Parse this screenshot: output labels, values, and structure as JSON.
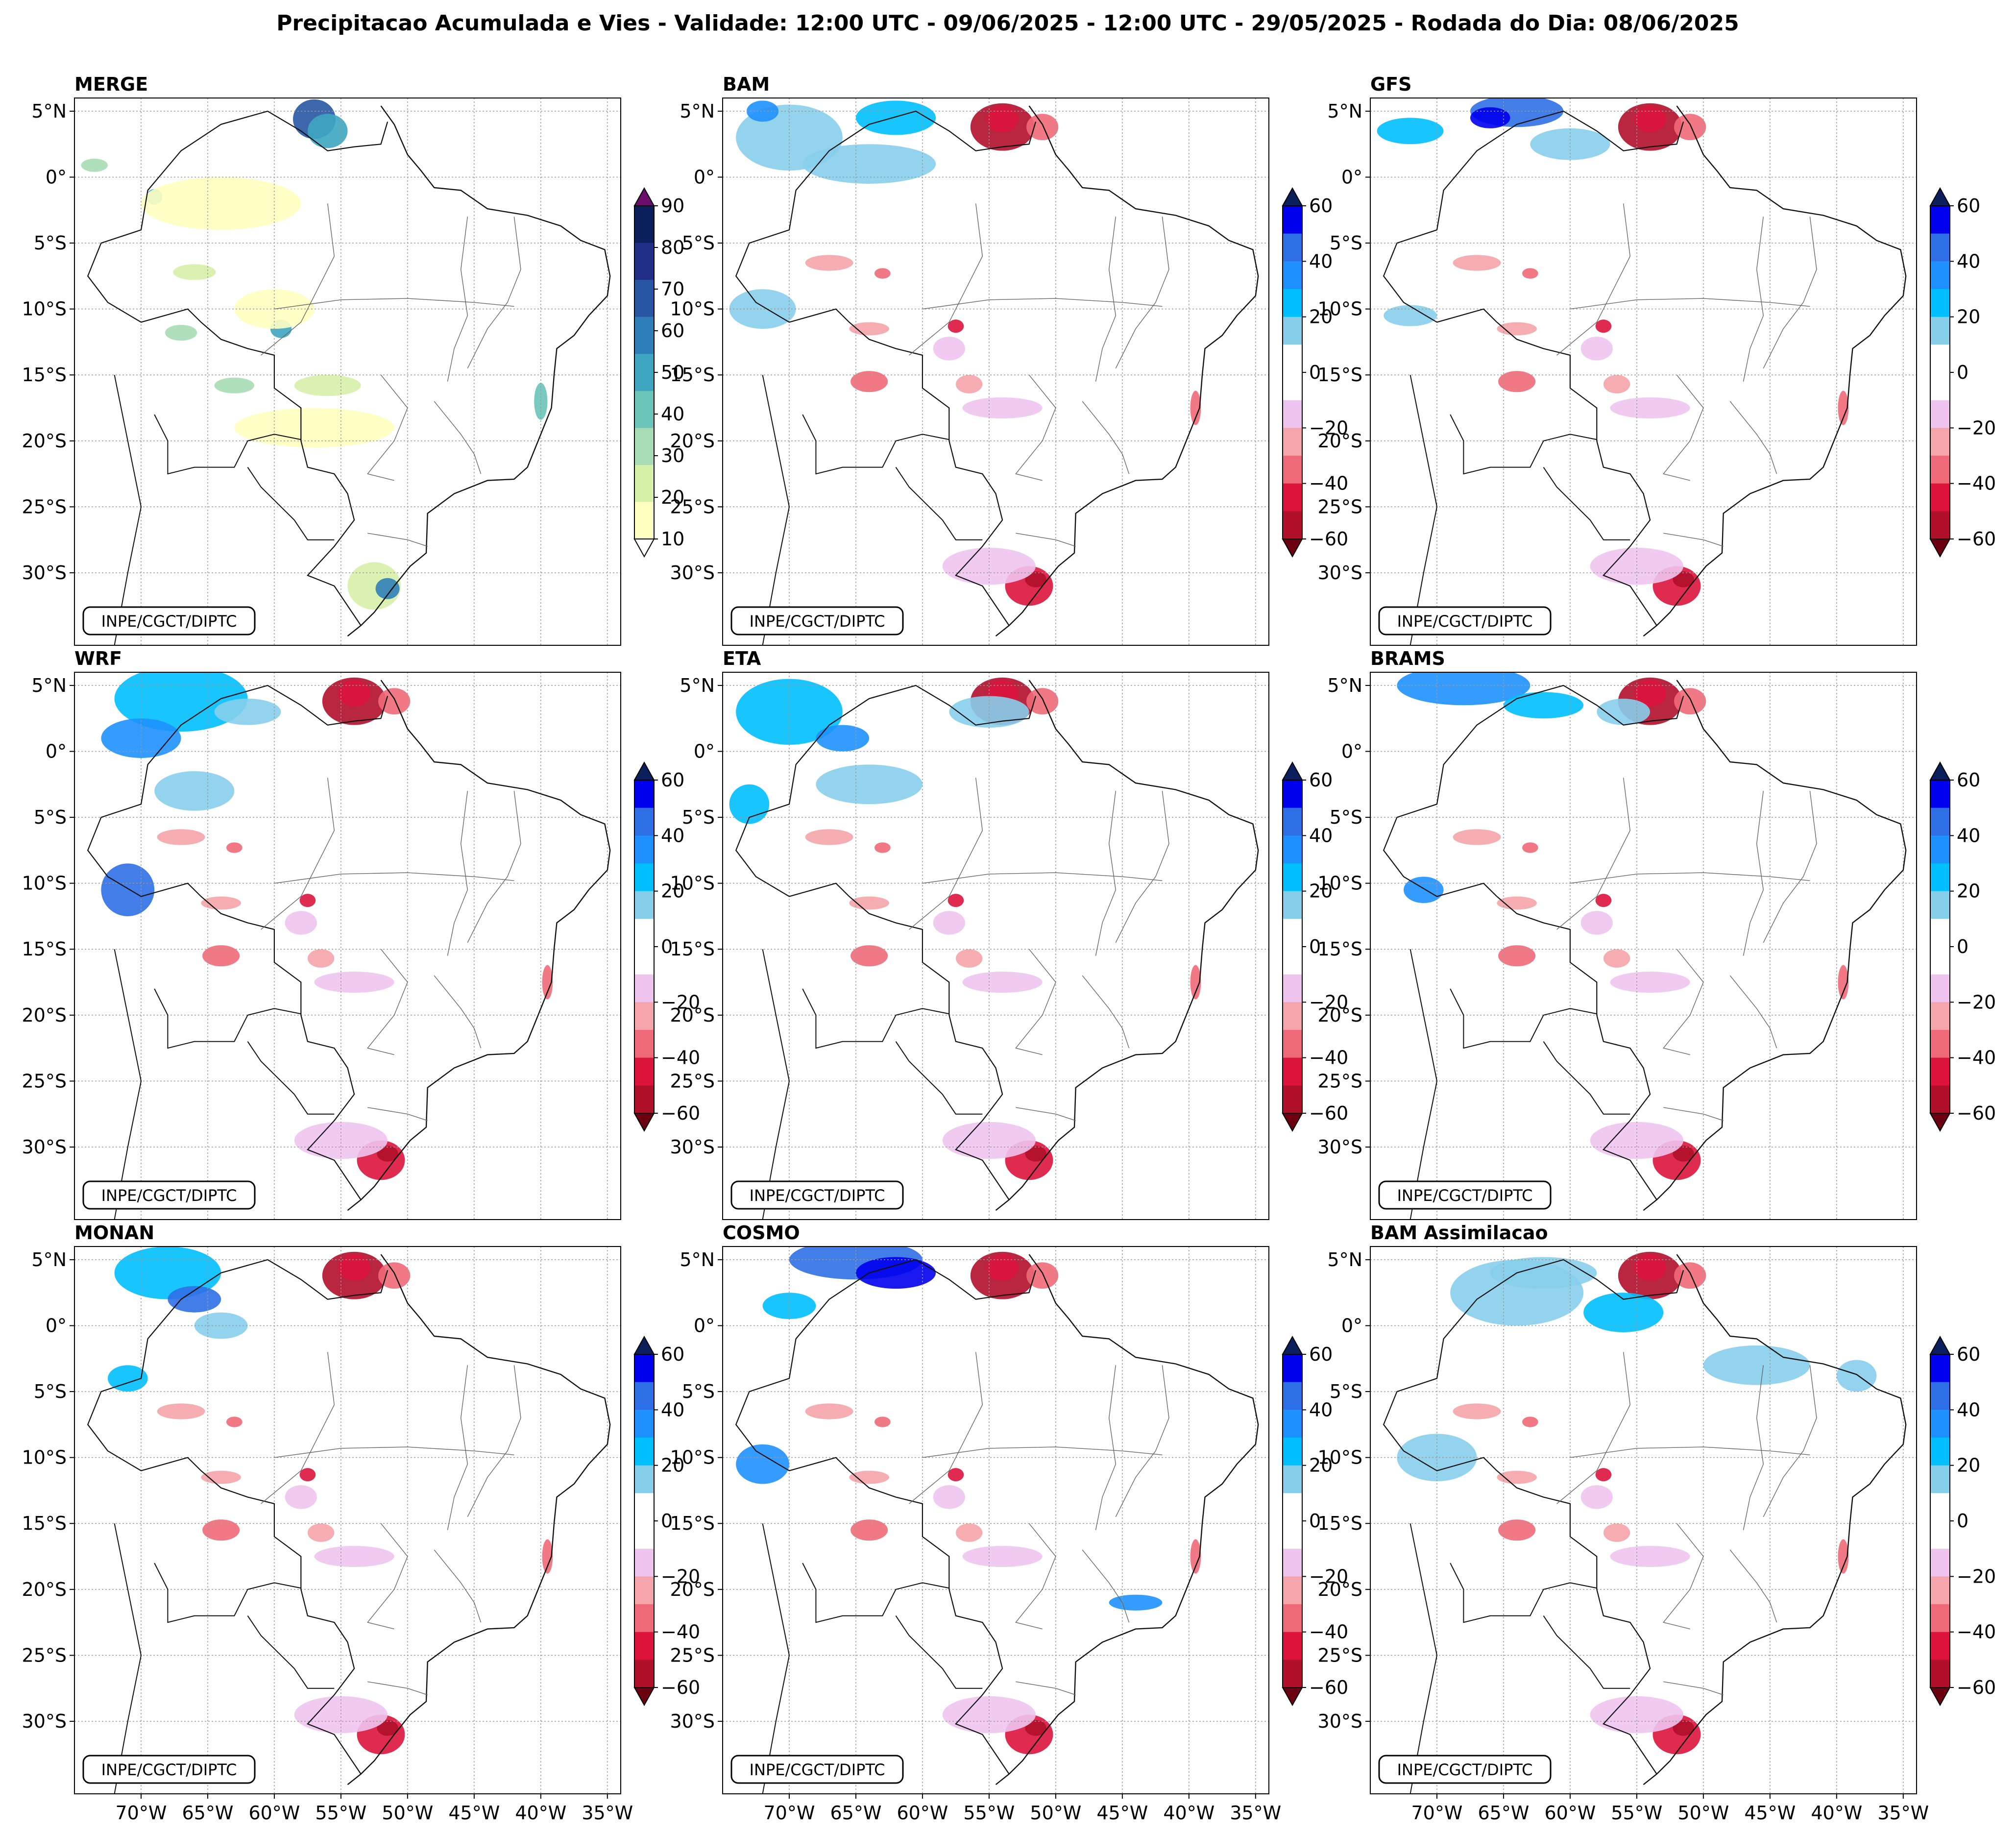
{
  "title": "Precipitacao Acumulada e Vies - Validade: 12:00 UTC - 09/06/2025 - 12:00 UTC - 29/05/2025 - Rodada do Dia: 08/06/2025",
  "credit": "INPE/CGCT/DIPTC",
  "lat_ticks": [
    "5°N",
    "0°",
    "5°S",
    "10°S",
    "15°S",
    "20°S",
    "25°S",
    "30°S"
  ],
  "lon_ticks": [
    "70°W",
    "65°W",
    "60°W",
    "55°W",
    "50°W",
    "45°W",
    "40°W",
    "35°W"
  ],
  "lat_values": [
    5,
    0,
    -5,
    -10,
    -15,
    -20,
    -25,
    -30
  ],
  "lon_values": [
    -70,
    -65,
    -60,
    -55,
    -50,
    -45,
    -40,
    -35
  ],
  "map_extent": {
    "lon": [
      -75,
      -34
    ],
    "lat": [
      -35.5,
      6
    ]
  },
  "colorbars": {
    "precip": {
      "labels": [
        "90",
        "80",
        "70",
        "60",
        "50",
        "40",
        "30",
        "20",
        "10"
      ],
      "colors": [
        "#ffffc0",
        "#d7f0a8",
        "#a6dbb4",
        "#6cc3b8",
        "#3ea5c1",
        "#2d7eb8",
        "#2856a3",
        "#212f88",
        "#0a1f5c"
      ],
      "extend_over": "#6b0f6b",
      "extend_under": "#ffffff"
    },
    "bias": {
      "labels": [
        "60",
        "40",
        "20",
        "0",
        "−20",
        "−40",
        "−60"
      ],
      "colors_top_to_bottom": [
        "#0000ee",
        "#2f6fe6",
        "#1e90ff",
        "#00bfff",
        "#87ceeb",
        "#ffffff",
        "#ffffff",
        "#eec4ee",
        "#f4a4aa",
        "#ee6a78",
        "#dc143c",
        "#b0102a"
      ],
      "extend_over": "#0a1f5c",
      "extend_under": "#6b0010"
    }
  },
  "panels": [
    {
      "name": "MERGE",
      "kind": "precip"
    },
    {
      "name": "BAM",
      "kind": "bias"
    },
    {
      "name": "GFS",
      "kind": "bias"
    },
    {
      "name": "WRF",
      "kind": "bias"
    },
    {
      "name": "ETA",
      "kind": "bias"
    },
    {
      "name": "BRAMS",
      "kind": "bias"
    },
    {
      "name": "MONAN",
      "kind": "bias"
    },
    {
      "name": "COSMO",
      "kind": "bias"
    },
    {
      "name": "BAM Assimilacao",
      "kind": "bias"
    }
  ]
}
